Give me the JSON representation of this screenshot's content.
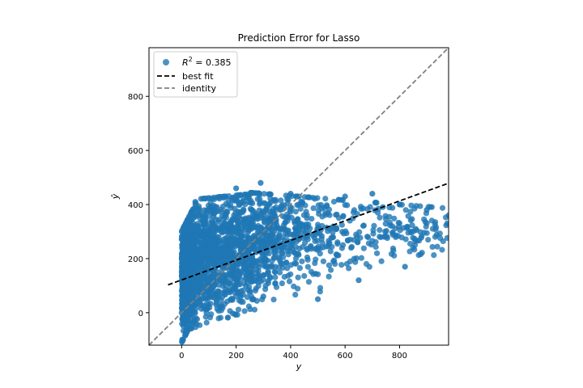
{
  "chart_data": {
    "type": "scatter",
    "title": "Prediction Error for Lasso",
    "xlabel": "y",
    "ylabel": "ŷ",
    "xlim": [
      -120,
      980
    ],
    "ylim": [
      -120,
      980
    ],
    "xticks": [
      0,
      200,
      400,
      600,
      800
    ],
    "yticks": [
      0,
      200,
      400,
      600,
      800
    ],
    "legend": {
      "placement": "top-left",
      "items": [
        {
          "label_prefix": "R",
          "label_sup": "2",
          "label_suffix": " = 0.385",
          "kind": "scatter",
          "color": "#1f77b4"
        },
        {
          "label": "best fit",
          "kind": "dashed-line",
          "color": "#000000"
        },
        {
          "label": "identity",
          "kind": "dashed-line",
          "color": "#808080"
        }
      ]
    },
    "best_fit": {
      "x": [
        -50,
        980
      ],
      "y": [
        103,
        479
      ]
    },
    "identity": {
      "x": [
        -120,
        980
      ],
      "y": [
        -120,
        980
      ]
    },
    "point_color": "#1f77b4",
    "scatter_cloud": {
      "description_points": [
        {
          "x": 0,
          "y": 0
        },
        {
          "x": 5,
          "y": -100
        },
        {
          "x": 10,
          "y": 260
        },
        {
          "x": 50,
          "y": 410
        },
        {
          "x": 100,
          "y": 300
        },
        {
          "x": 200,
          "y": 460
        },
        {
          "x": 290,
          "y": 480
        },
        {
          "x": 300,
          "y": 60
        },
        {
          "x": 400,
          "y": 440
        },
        {
          "x": 500,
          "y": 50
        },
        {
          "x": 600,
          "y": 430
        },
        {
          "x": 650,
          "y": 120
        },
        {
          "x": 700,
          "y": 440
        },
        {
          "x": 800,
          "y": 400
        },
        {
          "x": 820,
          "y": 170
        },
        {
          "x": 900,
          "y": 380
        },
        {
          "x": 980,
          "y": 360
        }
      ]
    }
  }
}
